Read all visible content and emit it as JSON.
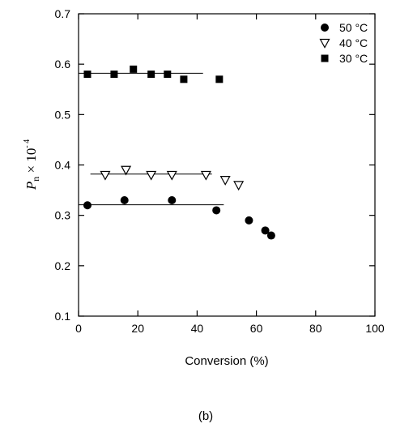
{
  "chart_data": {
    "type": "scatter",
    "xlabel": "Conversion (%)",
    "ylabel": {
      "symbol": "P",
      "subscript": "n",
      "times": " × 10",
      "exponent": "- 4"
    },
    "caption": "(b)",
    "xlim": [
      0,
      100
    ],
    "ylim": [
      0.1,
      0.7
    ],
    "x_ticks": [
      0,
      20,
      40,
      60,
      80,
      100
    ],
    "y_ticks": [
      0.1,
      0.2,
      0.3,
      0.4,
      0.5,
      0.6,
      0.7
    ],
    "x_tick_labels": [
      "0",
      "20",
      "40",
      "60",
      "80",
      "100"
    ],
    "y_tick_labels": [
      "0.1",
      "0.2",
      "0.3",
      "0.4",
      "0.5",
      "0.6",
      "0.7"
    ],
    "grid": false,
    "legend_position": "top-right",
    "series": [
      {
        "name": "50 °C",
        "marker": "filled-circle",
        "x": [
          3,
          15.5,
          31.5,
          46.5,
          57.5,
          63,
          65
        ],
        "y": [
          0.32,
          0.33,
          0.33,
          0.31,
          0.29,
          0.27,
          0.26
        ],
        "fit_line": {
          "x": [
            0,
            49
          ],
          "y": 0.321
        }
      },
      {
        "name": "40 °C",
        "marker": "open-triangle-down",
        "x": [
          9,
          16,
          24.5,
          31.5,
          43,
          49.5,
          54
        ],
        "y": [
          0.38,
          0.39,
          0.38,
          0.38,
          0.38,
          0.37,
          0.36
        ],
        "fit_line": {
          "x": [
            4,
            45
          ],
          "y": 0.382
        }
      },
      {
        "name": "30 °C",
        "marker": "filled-square",
        "x": [
          3,
          12,
          18.5,
          24.5,
          30,
          35.5,
          47.5
        ],
        "y": [
          0.58,
          0.58,
          0.59,
          0.58,
          0.58,
          0.57,
          0.57
        ],
        "fit_line": {
          "x": [
            0,
            42
          ],
          "y": 0.582
        }
      }
    ]
  }
}
